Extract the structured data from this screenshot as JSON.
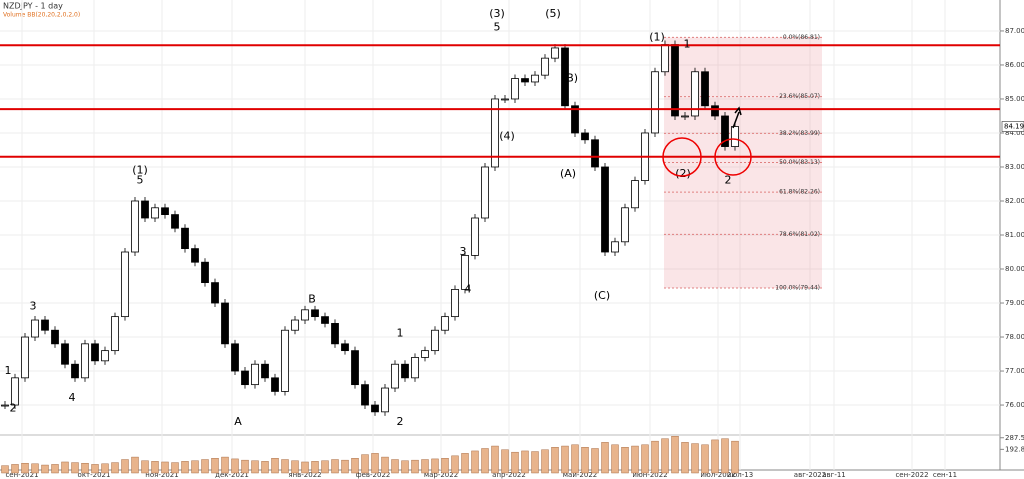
{
  "chart_data": {
    "type": "candlestick",
    "title": "NZDJPY - 1 day",
    "subtitle": "Volume  BB(20,20,2,0,2,0)",
    "closes": [
      76.0,
      76.8,
      78.0,
      78.5,
      78.2,
      77.8,
      77.2,
      76.8,
      77.8,
      77.3,
      77.6,
      78.6,
      80.5,
      82.0,
      81.5,
      81.8,
      81.6,
      81.2,
      80.6,
      80.2,
      79.6,
      79.0,
      77.8,
      77.0,
      76.6,
      77.2,
      76.8,
      76.4,
      78.2,
      78.5,
      78.8,
      78.6,
      78.4,
      77.8,
      77.6,
      76.6,
      76.0,
      75.8,
      76.5,
      77.2,
      76.8,
      77.4,
      77.6,
      78.2,
      78.6,
      79.4,
      80.4,
      81.5,
      83.0,
      85.0,
      85.0,
      85.6,
      85.5,
      85.7,
      86.2,
      86.5,
      84.8,
      84.0,
      83.8,
      83.0,
      80.5,
      80.8,
      81.8,
      82.6,
      84.0,
      85.8,
      86.6,
      84.5,
      84.5,
      85.8,
      84.8,
      84.5,
      83.6,
      84.19
    ],
    "volumes": [
      60,
      70,
      80,
      75,
      65,
      70,
      90,
      85,
      80,
      70,
      75,
      85,
      110,
      130,
      100,
      95,
      90,
      85,
      95,
      100,
      110,
      120,
      130,
      115,
      105,
      100,
      95,
      120,
      110,
      100,
      90,
      95,
      100,
      110,
      105,
      120,
      150,
      160,
      130,
      110,
      100,
      105,
      110,
      115,
      120,
      140,
      160,
      180,
      200,
      220,
      190,
      170,
      180,
      175,
      190,
      210,
      220,
      230,
      210,
      200,
      250,
      230,
      210,
      220,
      230,
      260,
      280,
      300,
      250,
      240,
      230,
      270,
      280,
      260
    ],
    "xlim": [
      -0.5,
      99.5
    ],
    "xticks": [
      {
        "value": 1.7,
        "label": "сен-2021"
      },
      {
        "value": 8.9,
        "label": "окт-2021"
      },
      {
        "value": 15.7,
        "label": "ноя-2021"
      },
      {
        "value": 22.7,
        "label": "дек-2021"
      },
      {
        "value": 30,
        "label": "янв-2022"
      },
      {
        "value": 36.8,
        "label": "фев-2022"
      },
      {
        "value": 43.6,
        "label": "мар-2022"
      },
      {
        "value": 50.4,
        "label": "апр-2022"
      },
      {
        "value": 57.5,
        "label": "май-2022"
      },
      {
        "value": 64.5,
        "label": "июн-2022"
      },
      {
        "value": 71.3,
        "label": "июл-2022"
      },
      {
        "value": 73.5,
        "label": "июл-13"
      },
      {
        "value": 80.5,
        "label": "авг-2022"
      },
      {
        "value": 82.9,
        "label": "авг-11"
      },
      {
        "value": 90.7,
        "label": "сен-2022"
      },
      {
        "value": 94,
        "label": "сен-11"
      }
    ],
    "ylim": [
      74.09,
      87.91
    ],
    "yticks": [
      {
        "value": 87,
        "label": "87.00"
      },
      {
        "value": 86,
        "label": "86.00"
      },
      {
        "value": 85,
        "label": "85.00"
      },
      {
        "value": 84,
        "label": "84.00"
      },
      {
        "value": 83,
        "label": "83.00"
      },
      {
        "value": 82,
        "label": "82.00"
      },
      {
        "value": 81,
        "label": "81.00"
      },
      {
        "value": 80,
        "label": "80.00"
      },
      {
        "value": 79,
        "label": "79.00"
      },
      {
        "value": 78,
        "label": "78.00"
      },
      {
        "value": 77,
        "label": "77.00"
      },
      {
        "value": 76,
        "label": "76.00"
      }
    ],
    "last_price": 84.19,
    "vlim": [
      0,
      310
    ],
    "vticks": [
      287.56,
      192.88
    ],
    "levels": [
      86.58,
      84.7,
      83.3
    ],
    "fib_x": [
      65.9,
      81.7
    ],
    "fib": [
      {
        "value": 86.81,
        "label": "0.0%(86.81)"
      },
      {
        "value": 85.07,
        "label": "23.6%(85.07)"
      },
      {
        "value": 83.99,
        "label": "38.2%(83.99)"
      },
      {
        "value": 83.13,
        "label": "50.0%(83.13)"
      },
      {
        "value": 82.26,
        "label": "61.8%(82.26)"
      },
      {
        "value": 81.02,
        "label": "78.6%(81.02)"
      },
      {
        "value": 79.44,
        "label": "100.0%(79.44)"
      }
    ],
    "waves": [
      {
        "text": "1",
        "x": 0.3,
        "y": 77.0
      },
      {
        "text": "2",
        "x": 0.8,
        "y": 75.9
      },
      {
        "text": "3",
        "x": 2.8,
        "y": 78.9
      },
      {
        "text": "4",
        "x": 6.7,
        "y": 76.2
      },
      {
        "text": "(1)",
        "x": 13.5,
        "y": 82.9
      },
      {
        "text": "5",
        "x": 13.5,
        "y": 82.6
      },
      {
        "text": "A",
        "x": 23.3,
        "y": 75.5
      },
      {
        "text": "B",
        "x": 30.7,
        "y": 79.1
      },
      {
        "text": "1",
        "x": 39.5,
        "y": 78.1
      },
      {
        "text": "2",
        "x": 39.5,
        "y": 75.5
      },
      {
        "text": "3",
        "x": 45.8,
        "y": 80.5
      },
      {
        "text": "4",
        "x": 46.3,
        "y": 79.4
      },
      {
        "text": "(3)",
        "x": 49.2,
        "y": 87.5
      },
      {
        "text": "5",
        "x": 49.2,
        "y": 87.1
      },
      {
        "text": "(4)",
        "x": 50.2,
        "y": 83.9
      },
      {
        "text": "(5)",
        "x": 54.8,
        "y": 87.5
      },
      {
        "text": "(B)",
        "x": 56.5,
        "y": 85.6
      },
      {
        "text": "(A)",
        "x": 56.3,
        "y": 82.8
      },
      {
        "text": "(C)",
        "x": 59.7,
        "y": 79.2
      },
      {
        "text": "(1)",
        "x": 65.2,
        "y": 86.8
      },
      {
        "text": "1",
        "x": 68.2,
        "y": 86.6
      },
      {
        "text": "(2)",
        "x": 67.8,
        "y": 82.8
      },
      {
        "text": "2",
        "x": 72.3,
        "y": 82.6
      }
    ]
  }
}
